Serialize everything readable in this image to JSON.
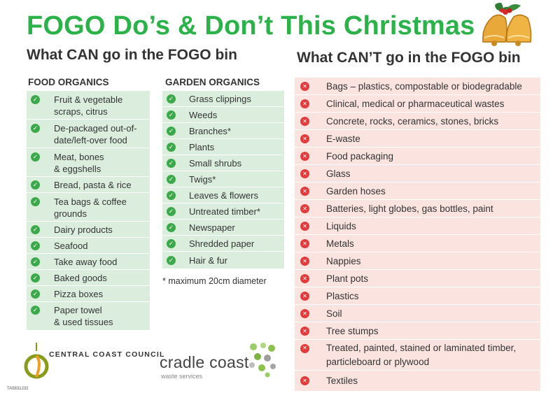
{
  "title": "FOGO Do’s & Don’t This Christmas",
  "can_heading": "What CAN go in the FOGO bin",
  "cant_heading": "What CAN’T go in the FOGO bin",
  "food": {
    "heading": "FOOD ORGANICS",
    "items": [
      [
        "Fruit & vegetable",
        "scraps, citrus"
      ],
      [
        "De-packaged out-of-",
        "date/left-over food"
      ],
      [
        "Meat, bones",
        "& eggshells"
      ],
      [
        "Bread, pasta & rice"
      ],
      [
        "Tea bags & coffee",
        "grounds"
      ],
      [
        "Dairy products"
      ],
      [
        "Seafood"
      ],
      [
        "Take away food"
      ],
      [
        "Baked goods"
      ],
      [
        "Pizza boxes"
      ],
      [
        "Paper towel",
        "& used tissues"
      ]
    ]
  },
  "garden": {
    "heading": "GARDEN ORGANICS",
    "items": [
      "Grass clippings",
      "Weeds",
      "Branches*",
      "Plants",
      "Small shrubs",
      "Twigs*",
      "Leaves & flowers",
      "Untreated timber*",
      "Newspaper",
      "Shredded paper",
      "Hair & fur"
    ],
    "note": "* maximum 20cm diameter"
  },
  "cant": {
    "items": [
      [
        "Bags – plastics, compostable or biodegradable"
      ],
      [
        "Clinical, medical or pharmaceutical wastes"
      ],
      [
        "Concrete, rocks, ceramics, stones, bricks"
      ],
      [
        "E-waste"
      ],
      [
        "Food packaging"
      ],
      [
        "Glass"
      ],
      [
        "Garden hoses"
      ],
      [
        "Batteries, light globes, gas bottles, paint"
      ],
      [
        "Liquids"
      ],
      [
        "Metals"
      ],
      [
        "Nappies"
      ],
      [
        "Plant pots"
      ],
      [
        "Plastics"
      ],
      [
        "Soil"
      ],
      [
        "Tree stumps"
      ],
      [
        "Treated, painted, stained or laminated timber,",
        "particleboard or plywood"
      ],
      [
        "Textiles"
      ]
    ]
  },
  "logos": {
    "council": "CENTRAL COAST COUNCIL",
    "cradle": "cradle coast",
    "cradle_sub": "waste services"
  },
  "doc_code": "TA5831232",
  "colors": {
    "title_green": "#2bb34a",
    "can_bg": "#dbeedd",
    "cant_bg": "#fbe4e0",
    "check": "#3ba84a",
    "cross": "#e23b3b"
  }
}
